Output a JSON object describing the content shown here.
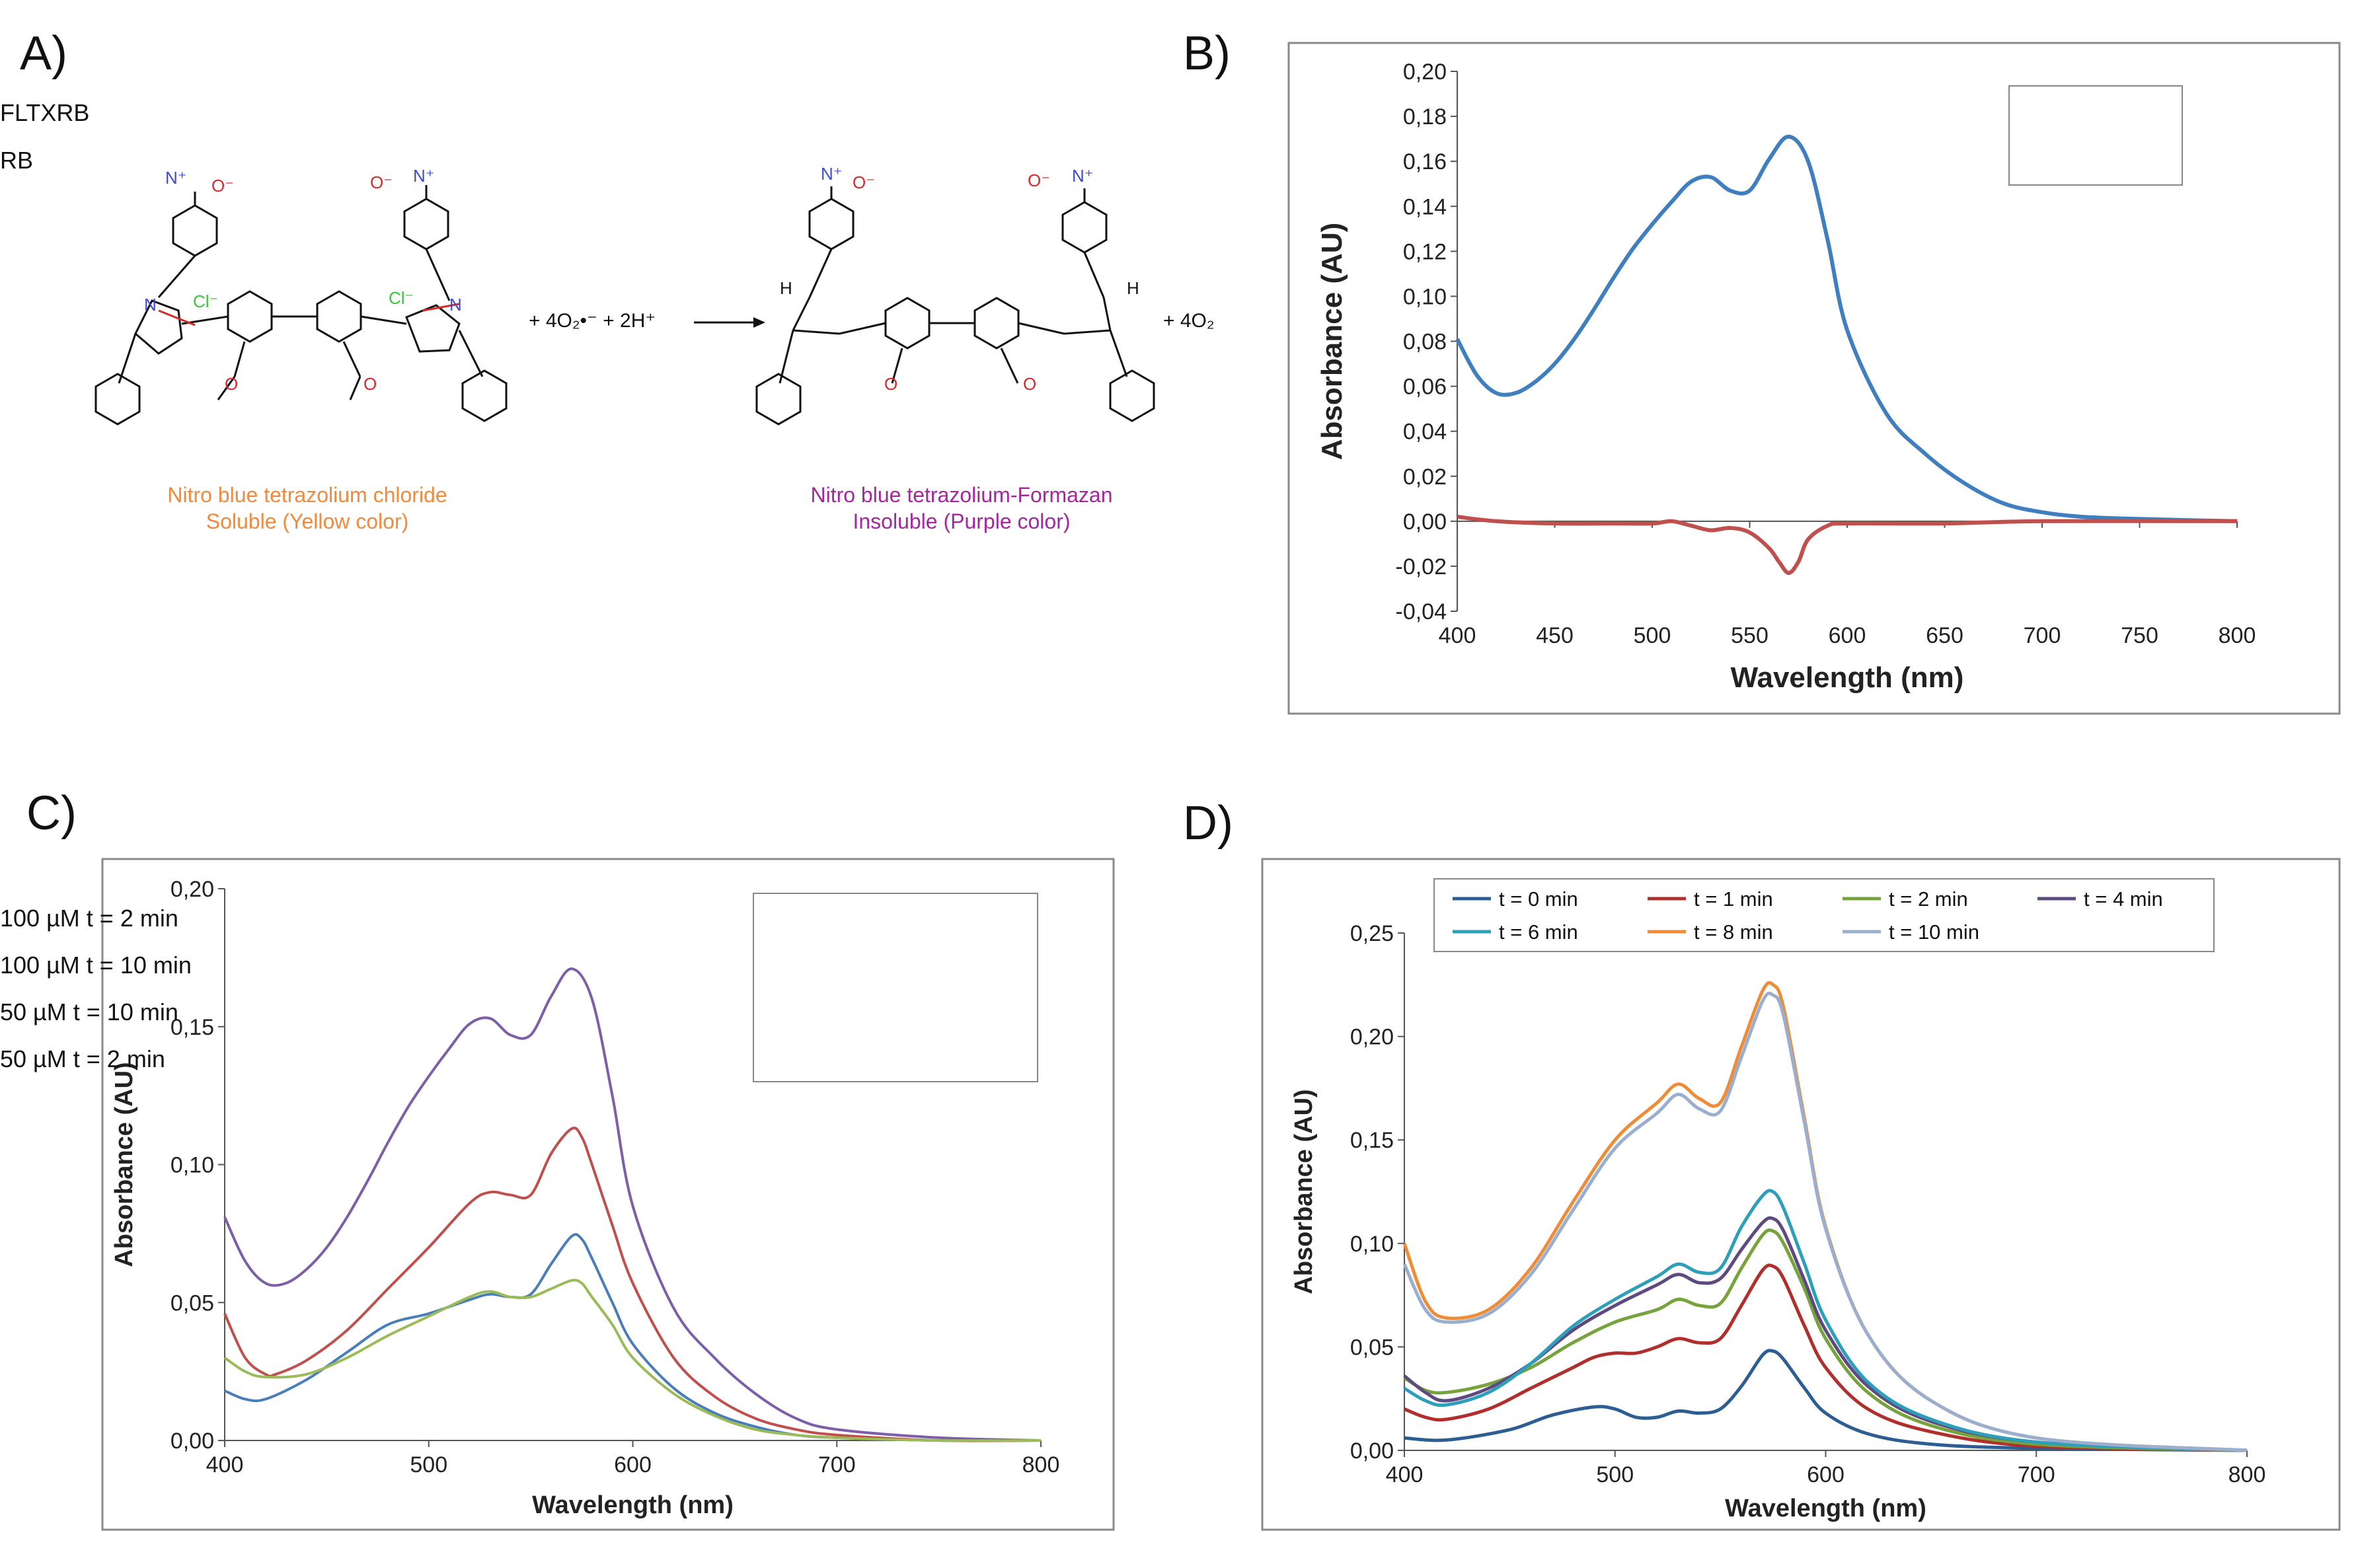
{
  "panels": {
    "A": {
      "label": "A)",
      "reactant_name": "Nitro blue tetrazolium chloride",
      "reactant_note": "Soluble (Yellow color)",
      "product_name": "Nitro blue tetrazolium-Formazan",
      "product_note": "Insoluble (Purple color)",
      "reagents": "+ 4O₂•⁻ + 2H⁺",
      "byproduct": "+ 4O₂",
      "atoms": {
        "N": "N",
        "O": "O",
        "Oplus": "N⁺",
        "Ominus": "O⁻",
        "H": "H",
        "Cl": "Cl⁻"
      },
      "colors": {
        "reactant": "#f08a3c",
        "product": "#a4279e",
        "nitrogen": "#3b4bd8",
        "oxygen": "#d42a2a",
        "chloride": "#39c439"
      }
    },
    "B": {
      "label": "B)"
    },
    "C": {
      "label": "C)"
    },
    "D": {
      "label": "D)"
    }
  },
  "chart_data": [
    {
      "id": "B",
      "type": "line",
      "xlabel": "Wavelength (nm)",
      "ylabel": "Absorbance (AU)",
      "xlim": [
        400,
        800
      ],
      "ylim": [
        -0.04,
        0.2
      ],
      "xticks": [
        400,
        450,
        500,
        550,
        600,
        650,
        700,
        750,
        800
      ],
      "yticks": [
        -0.04,
        -0.02,
        0.0,
        0.02,
        0.04,
        0.06,
        0.08,
        0.1,
        0.12,
        0.14,
        0.16,
        0.18,
        0.2
      ],
      "xtick_labels": [
        "400",
        "450",
        "500",
        "550",
        "600",
        "650",
        "700",
        "750",
        "800"
      ],
      "ytick_labels": [
        "-0,04",
        "-0,02",
        "0,00",
        "0,02",
        "0,04",
        "0,06",
        "0,08",
        "0,10",
        "0,12",
        "0,14",
        "0,16",
        "0,18",
        "0,20"
      ],
      "legend_position": "top-right",
      "series": [
        {
          "name": "FLTXRB",
          "color": "#3f7fbf",
          "x": [
            400,
            410,
            420,
            430,
            440,
            450,
            460,
            470,
            480,
            490,
            500,
            510,
            520,
            530,
            540,
            550,
            560,
            570,
            580,
            590,
            600,
            620,
            640,
            660,
            680,
            700,
            720,
            750,
            800
          ],
          "y": [
            0.081,
            0.065,
            0.057,
            0.057,
            0.062,
            0.07,
            0.081,
            0.094,
            0.108,
            0.121,
            0.132,
            0.142,
            0.151,
            0.153,
            0.147,
            0.147,
            0.161,
            0.171,
            0.16,
            0.125,
            0.085,
            0.048,
            0.03,
            0.017,
            0.008,
            0.004,
            0.002,
            0.001,
            0.0
          ]
        },
        {
          "name": "RB",
          "color": "#c0504d",
          "x": [
            400,
            420,
            450,
            480,
            500,
            510,
            520,
            530,
            540,
            550,
            560,
            565,
            570,
            575,
            580,
            590,
            600,
            650,
            700,
            800
          ],
          "y": [
            0.002,
            0.0,
            -0.001,
            -0.001,
            -0.001,
            0.0,
            -0.002,
            -0.004,
            -0.003,
            -0.005,
            -0.012,
            -0.018,
            -0.023,
            -0.018,
            -0.008,
            -0.002,
            -0.001,
            -0.001,
            0.0,
            0.0
          ]
        }
      ]
    },
    {
      "id": "C",
      "type": "line",
      "xlabel": "Wavelength (nm)",
      "ylabel": "Absorbance (AU)",
      "xlim": [
        400,
        800
      ],
      "ylim": [
        0,
        0.2
      ],
      "xticks": [
        400,
        500,
        600,
        700,
        800
      ],
      "yticks": [
        0,
        0.05,
        0.1,
        0.15,
        0.2
      ],
      "xtick_labels": [
        "400",
        "500",
        "600",
        "700",
        "800"
      ],
      "ytick_labels": [
        "0,00",
        "0,05",
        "0,10",
        "0,15",
        "0,20"
      ],
      "legend_position": "top-right",
      "series": [
        {
          "name": "100 µM t = 2 min",
          "color": "#4a7ebb",
          "x": [
            400,
            410,
            420,
            440,
            460,
            480,
            500,
            520,
            530,
            540,
            550,
            560,
            570,
            575,
            580,
            590,
            600,
            620,
            640,
            660,
            680,
            700,
            750,
            800
          ],
          "y": [
            0.018,
            0.015,
            0.015,
            0.022,
            0.032,
            0.042,
            0.046,
            0.051,
            0.053,
            0.052,
            0.053,
            0.064,
            0.074,
            0.073,
            0.066,
            0.05,
            0.035,
            0.019,
            0.01,
            0.005,
            0.002,
            0.001,
            0.0,
            0.0
          ]
        },
        {
          "name": "100 µM t = 10 min",
          "color": "#c0504d",
          "x": [
            400,
            410,
            420,
            425,
            440,
            460,
            480,
            500,
            520,
            530,
            540,
            550,
            560,
            570,
            575,
            580,
            590,
            600,
            620,
            640,
            660,
            680,
            700,
            750,
            800
          ],
          "y": [
            0.046,
            0.03,
            0.024,
            0.024,
            0.029,
            0.04,
            0.055,
            0.07,
            0.086,
            0.09,
            0.089,
            0.089,
            0.104,
            0.113,
            0.11,
            0.1,
            0.078,
            0.057,
            0.03,
            0.016,
            0.008,
            0.004,
            0.002,
            0.0,
            0.0
          ]
        },
        {
          "name": "50 µM t = 10 min",
          "color": "#7d5ea8",
          "x": [
            400,
            410,
            420,
            430,
            440,
            450,
            460,
            470,
            480,
            490,
            500,
            510,
            520,
            530,
            540,
            550,
            560,
            570,
            580,
            590,
            600,
            620,
            640,
            660,
            680,
            700,
            750,
            800
          ],
          "y": [
            0.081,
            0.065,
            0.057,
            0.057,
            0.062,
            0.07,
            0.081,
            0.094,
            0.108,
            0.121,
            0.132,
            0.142,
            0.151,
            0.153,
            0.147,
            0.147,
            0.161,
            0.171,
            0.16,
            0.125,
            0.085,
            0.048,
            0.03,
            0.017,
            0.008,
            0.004,
            0.001,
            0.0
          ]
        },
        {
          "name": "50 µM t = 2 min",
          "color": "#9bbb59",
          "x": [
            400,
            410,
            420,
            440,
            460,
            480,
            500,
            520,
            530,
            540,
            550,
            560,
            570,
            575,
            580,
            590,
            600,
            620,
            640,
            660,
            680,
            700,
            750,
            800
          ],
          "y": [
            0.03,
            0.025,
            0.023,
            0.024,
            0.03,
            0.038,
            0.045,
            0.052,
            0.054,
            0.052,
            0.052,
            0.055,
            0.058,
            0.057,
            0.052,
            0.042,
            0.03,
            0.017,
            0.009,
            0.004,
            0.002,
            0.001,
            0.0,
            0.0
          ]
        }
      ]
    },
    {
      "id": "D",
      "type": "line",
      "xlabel": "Wavelength (nm)",
      "ylabel": "Absorbance (AU)",
      "xlim": [
        400,
        800
      ],
      "ylim": [
        0,
        0.25
      ],
      "xticks": [
        400,
        500,
        600,
        700,
        800
      ],
      "yticks": [
        0,
        0.05,
        0.1,
        0.15,
        0.2,
        0.25
      ],
      "xtick_labels": [
        "400",
        "500",
        "600",
        "700",
        "800"
      ],
      "ytick_labels": [
        "0,00",
        "0,05",
        "0,10",
        "0,15",
        "0,20",
        "0,25"
      ],
      "legend_position": "top",
      "series": [
        {
          "name": "t = 0 min",
          "color": "#2c5d93",
          "x": [
            400,
            420,
            450,
            470,
            490,
            500,
            510,
            520,
            530,
            540,
            550,
            560,
            570,
            575,
            580,
            590,
            600,
            620,
            650,
            700,
            800
          ],
          "y": [
            0.006,
            0.005,
            0.01,
            0.017,
            0.021,
            0.02,
            0.016,
            0.016,
            0.019,
            0.018,
            0.02,
            0.031,
            0.046,
            0.048,
            0.044,
            0.03,
            0.018,
            0.008,
            0.003,
            0.001,
            0.0
          ]
        },
        {
          "name": "t = 1 min",
          "color": "#b02f2c",
          "x": [
            400,
            410,
            420,
            440,
            460,
            480,
            490,
            500,
            510,
            520,
            530,
            540,
            550,
            560,
            570,
            575,
            580,
            590,
            600,
            620,
            650,
            700,
            800
          ],
          "y": [
            0.02,
            0.016,
            0.015,
            0.02,
            0.03,
            0.04,
            0.045,
            0.047,
            0.047,
            0.05,
            0.054,
            0.052,
            0.054,
            0.07,
            0.087,
            0.089,
            0.083,
            0.06,
            0.04,
            0.02,
            0.009,
            0.002,
            0.0
          ]
        },
        {
          "name": "t = 2 min",
          "color": "#77a33d",
          "x": [
            400,
            410,
            420,
            440,
            460,
            480,
            500,
            520,
            530,
            540,
            550,
            560,
            570,
            575,
            580,
            590,
            600,
            620,
            650,
            700,
            800
          ],
          "y": [
            0.035,
            0.029,
            0.028,
            0.032,
            0.04,
            0.052,
            0.062,
            0.068,
            0.073,
            0.07,
            0.071,
            0.088,
            0.104,
            0.106,
            0.1,
            0.078,
            0.054,
            0.028,
            0.012,
            0.003,
            0.0
          ]
        },
        {
          "name": "t = 4 min",
          "color": "#5e4a80",
          "x": [
            400,
            410,
            420,
            440,
            460,
            480,
            500,
            520,
            530,
            540,
            550,
            560,
            570,
            575,
            580,
            590,
            600,
            620,
            650,
            700,
            800
          ],
          "y": [
            0.036,
            0.028,
            0.024,
            0.03,
            0.042,
            0.058,
            0.07,
            0.08,
            0.085,
            0.081,
            0.083,
            0.097,
            0.11,
            0.112,
            0.106,
            0.082,
            0.058,
            0.031,
            0.014,
            0.004,
            0.0
          ]
        },
        {
          "name": "t = 6 min",
          "color": "#2d9fbb",
          "x": [
            400,
            410,
            420,
            440,
            460,
            480,
            500,
            520,
            530,
            540,
            550,
            560,
            570,
            575,
            580,
            590,
            600,
            620,
            650,
            700,
            800
          ],
          "y": [
            0.03,
            0.024,
            0.022,
            0.028,
            0.042,
            0.06,
            0.073,
            0.084,
            0.09,
            0.086,
            0.088,
            0.108,
            0.123,
            0.125,
            0.117,
            0.09,
            0.063,
            0.033,
            0.015,
            0.004,
            0.0
          ]
        },
        {
          "name": "t = 8 min",
          "color": "#ef8c38",
          "x": [
            400,
            410,
            420,
            440,
            460,
            480,
            500,
            520,
            530,
            540,
            550,
            560,
            570,
            575,
            580,
            590,
            600,
            620,
            650,
            700,
            800
          ],
          "y": [
            0.1,
            0.072,
            0.064,
            0.068,
            0.088,
            0.12,
            0.15,
            0.168,
            0.177,
            0.17,
            0.168,
            0.195,
            0.222,
            0.225,
            0.214,
            0.16,
            0.108,
            0.056,
            0.024,
            0.006,
            0.0
          ]
        },
        {
          "name": "t = 10 min",
          "color": "#9aaed0",
          "x": [
            400,
            410,
            420,
            440,
            460,
            480,
            500,
            520,
            530,
            540,
            550,
            560,
            570,
            575,
            580,
            590,
            600,
            620,
            650,
            700,
            800
          ],
          "y": [
            0.09,
            0.068,
            0.062,
            0.066,
            0.085,
            0.116,
            0.146,
            0.163,
            0.172,
            0.165,
            0.164,
            0.19,
            0.217,
            0.22,
            0.21,
            0.158,
            0.107,
            0.056,
            0.024,
            0.006,
            0.0
          ]
        }
      ]
    }
  ]
}
